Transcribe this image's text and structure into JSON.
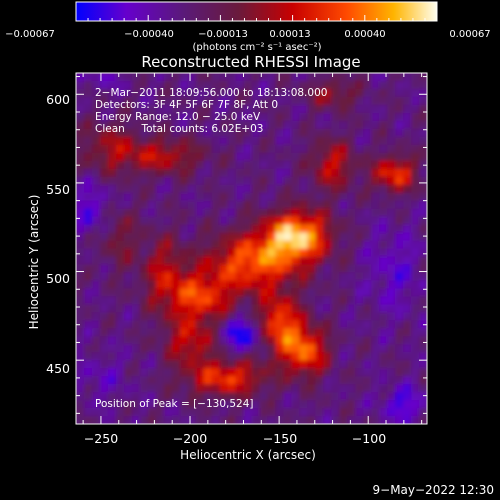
{
  "chart_data": {
    "type": "heatmap",
    "title": "Reconstructed RHESSI Image",
    "xlabel": "Heliocentric X (arcsec)",
    "ylabel": "Heliocentric Y (arcsec)",
    "xlim": [
      -264,
      -67
    ],
    "ylim": [
      414,
      612
    ],
    "x_ticks": [
      -250,
      -200,
      -150,
      -100
    ],
    "x_tick_labels": [
      "−250",
      "−200",
      "−150",
      "−100"
    ],
    "y_ticks": [
      450,
      500,
      550,
      600
    ],
    "y_tick_labels": [
      "450",
      "500",
      "550",
      "600"
    ],
    "colorbar": {
      "range": [
        -0.00067,
        0.00067
      ],
      "ticks": [
        -0.00067,
        -0.0004,
        -0.00013,
        0.00013,
        0.0004,
        0.00067
      ],
      "tick_labels": [
        "−0.00067",
        "−0.00040",
        "−0.00013",
        "0.00013",
        "0.00040",
        "0.00067"
      ],
      "label": "(photons cm⁻² s⁻¹ asec⁻²)",
      "stops": [
        "#0000ff",
        "#6600cc",
        "#5a1a78",
        "#6a1a3c",
        "#c80000",
        "#ff4a00",
        "#ffb400",
        "#fffff0"
      ]
    },
    "annotations": [
      "2−Mar−2011 18:09:56.000 to 18:13:08.000",
      "Detectors: 3F 4F 5F 6F 7F 8F, Att 0",
      "Energy Range: 12.0 − 25.0 keV",
      "Clean     Total counts: 6.02E+03"
    ],
    "peak_text": "Position of Peak = [−130,524]",
    "peak_position": [
      -130,
      524
    ],
    "grid": false
  },
  "footer": {
    "date": "9−May−2022 12:30"
  }
}
